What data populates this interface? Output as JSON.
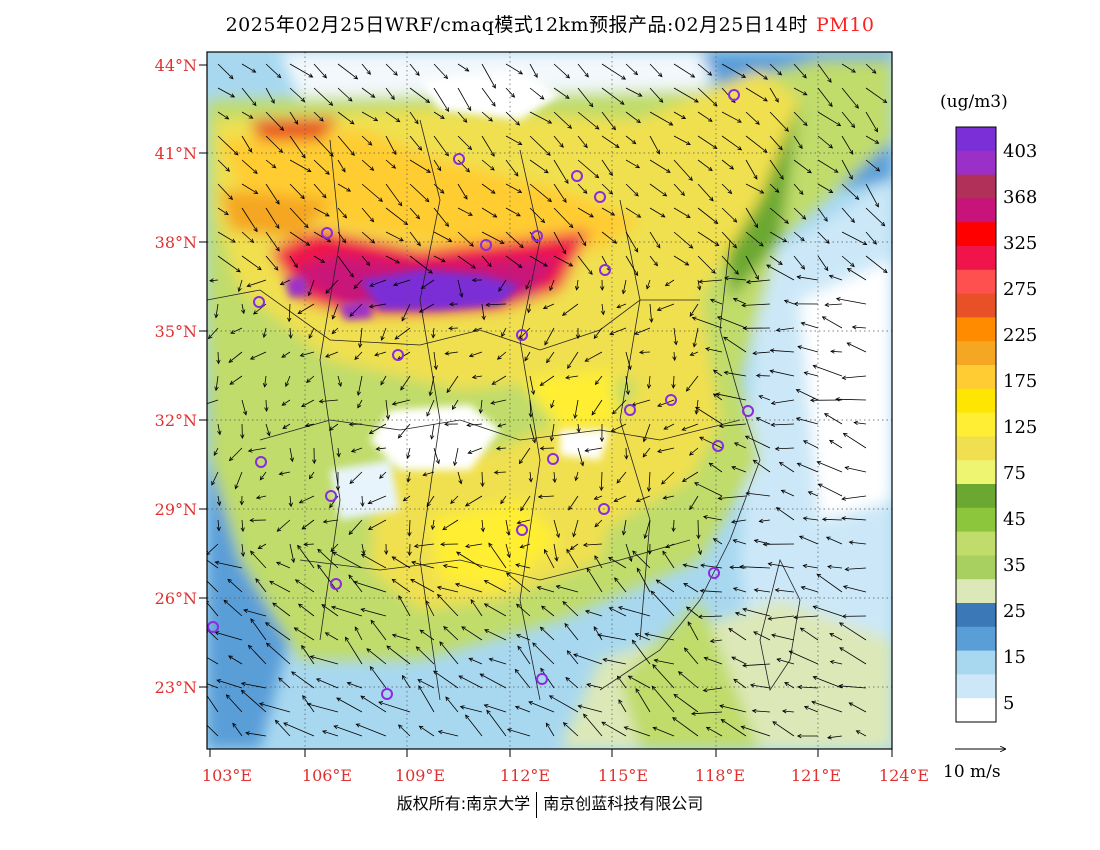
{
  "header": {
    "title": "2025年02月25日WRF/cmaq模式12km预报产品:02月25日14时",
    "pollutant": "PM10"
  },
  "axes": {
    "lat_labels": [
      "44°N",
      "41°N",
      "38°N",
      "35°N",
      "32°N",
      "29°N",
      "26°N",
      "23°N"
    ],
    "lon_labels": [
      "103°E",
      "106°E",
      "109°E",
      "112°E",
      "115°E",
      "118°E",
      "121°E",
      "124°E"
    ],
    "label_color": "#e03030"
  },
  "colorbar": {
    "unit": "(ug/m3)",
    "labels": [
      "403",
      "368",
      "325",
      "275",
      "225",
      "175",
      "125",
      "75",
      "45",
      "35",
      "25",
      "15",
      "5"
    ],
    "colors": [
      "#7b2fd6",
      "#9b30c8",
      "#b0305a",
      "#c8147a",
      "#ff0000",
      "#f0144a",
      "#ff5050",
      "#e85028",
      "#ff8c00",
      "#f5a623",
      "#ffcc33",
      "#ffe600",
      "#ffee33",
      "#f0e050",
      "#eef570",
      "#6aa832",
      "#8cc63c",
      "#c0dc6a",
      "#a8d060",
      "#dde8b8",
      "#3a78b8",
      "#5a9ed8",
      "#a8d8f0",
      "#cce8f8",
      "#ffffff"
    ]
  },
  "wind_reference": {
    "label": "10 m/s"
  },
  "footer": {
    "copyright": "版权所有:南京大学",
    "company": "南京创蓝科技有限公司"
  }
}
